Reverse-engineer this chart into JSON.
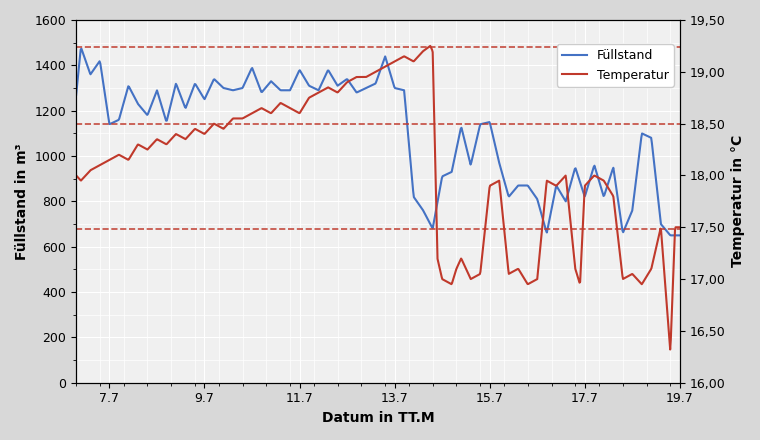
{
  "fuellstand_x": [
    7.0,
    7.1,
    7.2,
    7.3,
    7.5,
    7.7,
    7.9,
    8.1,
    8.3,
    8.5,
    8.7,
    8.9,
    9.1,
    9.3,
    9.5,
    9.7,
    9.9,
    10.1,
    10.3,
    10.5,
    10.7,
    10.9,
    11.1,
    11.3,
    11.5,
    11.7,
    11.9,
    12.1,
    12.3,
    12.5,
    12.7,
    12.9,
    13.1,
    13.3,
    13.5,
    13.7,
    13.9,
    14.1,
    14.3,
    14.5,
    14.7,
    14.9,
    15.1,
    15.3,
    15.5,
    15.7,
    15.9,
    16.1,
    16.3,
    16.5,
    16.7,
    16.9,
    17.1,
    17.3,
    17.5,
    17.7,
    17.9,
    18.1,
    18.3,
    18.5,
    18.7,
    18.9,
    19.1,
    19.3,
    19.5,
    19.7
  ],
  "fuellstand_y": [
    1270,
    1480,
    1420,
    1360,
    1420,
    1140,
    1160,
    1310,
    1230,
    1180,
    1290,
    1150,
    1320,
    1210,
    1320,
    1250,
    1340,
    1300,
    1290,
    1300,
    1390,
    1280,
    1330,
    1290,
    1290,
    1380,
    1310,
    1290,
    1380,
    1310,
    1340,
    1280,
    1300,
    1320,
    1440,
    1300,
    1290,
    820,
    760,
    680,
    910,
    930,
    1130,
    960,
    1140,
    1150,
    970,
    820,
    870,
    870,
    810,
    660,
    870,
    800,
    950,
    820,
    960,
    820,
    950,
    660,
    760,
    1100,
    1080,
    700,
    650,
    650
  ],
  "temperatur_x": [
    7.0,
    7.1,
    7.3,
    7.5,
    7.7,
    7.9,
    8.1,
    8.3,
    8.5,
    8.7,
    8.9,
    9.1,
    9.3,
    9.5,
    9.7,
    9.9,
    10.1,
    10.3,
    10.5,
    10.7,
    10.9,
    11.1,
    11.3,
    11.5,
    11.7,
    11.9,
    12.1,
    12.3,
    12.5,
    12.7,
    12.9,
    13.1,
    13.3,
    13.5,
    13.7,
    13.9,
    14.1,
    14.3,
    14.45,
    14.5,
    14.6,
    14.7,
    14.9,
    15.0,
    15.1,
    15.3,
    15.5,
    15.7,
    15.9,
    16.1,
    16.3,
    16.5,
    16.7,
    16.9,
    17.1,
    17.3,
    17.5,
    17.6,
    17.7,
    17.9,
    18.1,
    18.3,
    18.5,
    18.7,
    18.9,
    19.1,
    19.3,
    19.5,
    19.6,
    19.7
  ],
  "temperatur_y": [
    18.0,
    17.95,
    18.05,
    18.1,
    18.15,
    18.2,
    18.15,
    18.3,
    18.25,
    18.35,
    18.3,
    18.4,
    18.35,
    18.45,
    18.4,
    18.5,
    18.45,
    18.55,
    18.55,
    18.6,
    18.65,
    18.6,
    18.7,
    18.65,
    18.6,
    18.75,
    18.8,
    18.85,
    18.8,
    18.9,
    18.95,
    18.95,
    19.0,
    19.05,
    19.1,
    19.15,
    19.1,
    19.2,
    19.25,
    19.2,
    17.2,
    17.0,
    16.95,
    17.1,
    17.2,
    17.0,
    17.05,
    17.9,
    17.95,
    17.05,
    17.1,
    16.95,
    17.0,
    17.95,
    17.9,
    18.0,
    17.1,
    16.95,
    17.9,
    18.0,
    17.95,
    17.8,
    17.0,
    17.05,
    16.95,
    17.1,
    17.5,
    16.3,
    17.5,
    17.5
  ],
  "hline_fuellstand": [
    1480,
    1140,
    680
  ],
  "hline_temp": [
    19.3,
    18.5,
    17.5
  ],
  "fuellstand_color": "#4472C4",
  "temperatur_color": "#C0392B",
  "hline_color": "#C0392B",
  "ylim_left": [
    0,
    1600
  ],
  "ylim_right": [
    16.0,
    19.5
  ],
  "yticks_left": [
    0,
    200,
    400,
    600,
    800,
    1000,
    1200,
    1400,
    1600
  ],
  "yticks_right": [
    16.0,
    16.5,
    17.0,
    17.5,
    18.0,
    18.5,
    19.0,
    19.5
  ],
  "ytick_labels_right": [
    "16,00",
    "16,50",
    "17,00",
    "17,50",
    "18,00",
    "18,50",
    "19,00",
    "19,50"
  ],
  "ytick_labels_left": [
    "0",
    "200",
    "400",
    "600",
    "800",
    "1000",
    "1200",
    "1400",
    "1600"
  ],
  "xticks": [
    7.7,
    9.7,
    11.7,
    13.7,
    15.7,
    17.7,
    19.7
  ],
  "xtick_labels": [
    "7.7",
    "9.7",
    "11.7",
    "13.7",
    "15.7",
    "17.7",
    "19.7"
  ],
  "xlabel": "Datum in TT.M",
  "ylabel_left": "Füllstand in m³",
  "ylabel_right": "Temperatur in °C",
  "legend_labels": [
    "Füllstand",
    "Temperatur"
  ],
  "xlim": [
    7.0,
    19.7
  ],
  "bg_color": "#f0f0f0",
  "grid_color": "#ffffff"
}
